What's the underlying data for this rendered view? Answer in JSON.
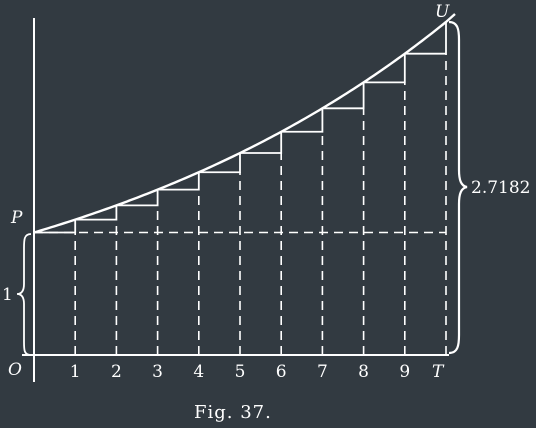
{
  "figure": {
    "caption": "Fig. 37.",
    "point_labels": {
      "origin": "O",
      "start": "P",
      "end_top": "U",
      "end_bottom": "T"
    },
    "x_ticks": [
      "1",
      "2",
      "3",
      "4",
      "5",
      "6",
      "7",
      "8",
      "9"
    ],
    "brace_left_label": "1",
    "brace_right_label": "2.7182",
    "colors": {
      "background": "#323a41",
      "ink": "#ffffff"
    }
  },
  "chart_data": {
    "type": "line",
    "x": [
      0,
      1,
      2,
      3,
      4,
      5,
      6,
      7,
      8,
      9,
      10
    ],
    "y": [
      1,
      1.1052,
      1.2214,
      1.3499,
      1.4918,
      1.6487,
      1.8221,
      2.0138,
      2.2255,
      2.4596,
      2.7182
    ],
    "xlim": [
      0,
      10
    ],
    "ylim": [
      0,
      2.7182
    ]
  }
}
